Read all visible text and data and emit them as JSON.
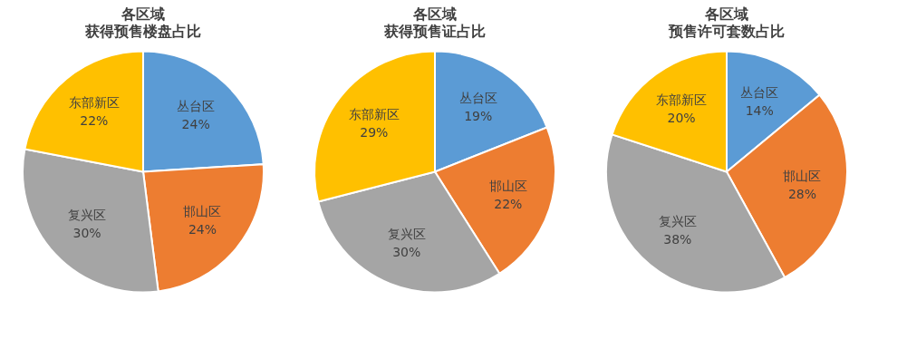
{
  "chart_data": [
    {
      "type": "pie",
      "title": "各区域",
      "subtitle": "获得预售楼盘占比",
      "categories": [
        "丛台区",
        "邯山区",
        "复兴区",
        "东部新区"
      ],
      "values": [
        24,
        24,
        30,
        22
      ],
      "value_labels": [
        "24%",
        "24%",
        "30%",
        "22%"
      ],
      "colors": [
        "#5b9bd5",
        "#ed7d31",
        "#a5a5a5",
        "#ffc000"
      ],
      "legend": false
    },
    {
      "type": "pie",
      "title": "各区域",
      "subtitle": "获得预售证占比",
      "categories": [
        "丛台区",
        "邯山区",
        "复兴区",
        "东部新区"
      ],
      "values": [
        19,
        22,
        30,
        29
      ],
      "value_labels": [
        "19%",
        "22%",
        "30%",
        "29%"
      ],
      "colors": [
        "#5b9bd5",
        "#ed7d31",
        "#a5a5a5",
        "#ffc000"
      ],
      "legend": false
    },
    {
      "type": "pie",
      "title": "各区域",
      "subtitle": "预售许可套数占比",
      "categories": [
        "丛台区",
        "邯山区",
        "复兴区",
        "东部新区"
      ],
      "values": [
        14,
        28,
        38,
        20
      ],
      "value_labels": [
        "14%",
        "28%",
        "38%",
        "20%"
      ],
      "colors": [
        "#5b9bd5",
        "#ed7d31",
        "#a5a5a5",
        "#ffc000"
      ],
      "legend": false
    }
  ]
}
